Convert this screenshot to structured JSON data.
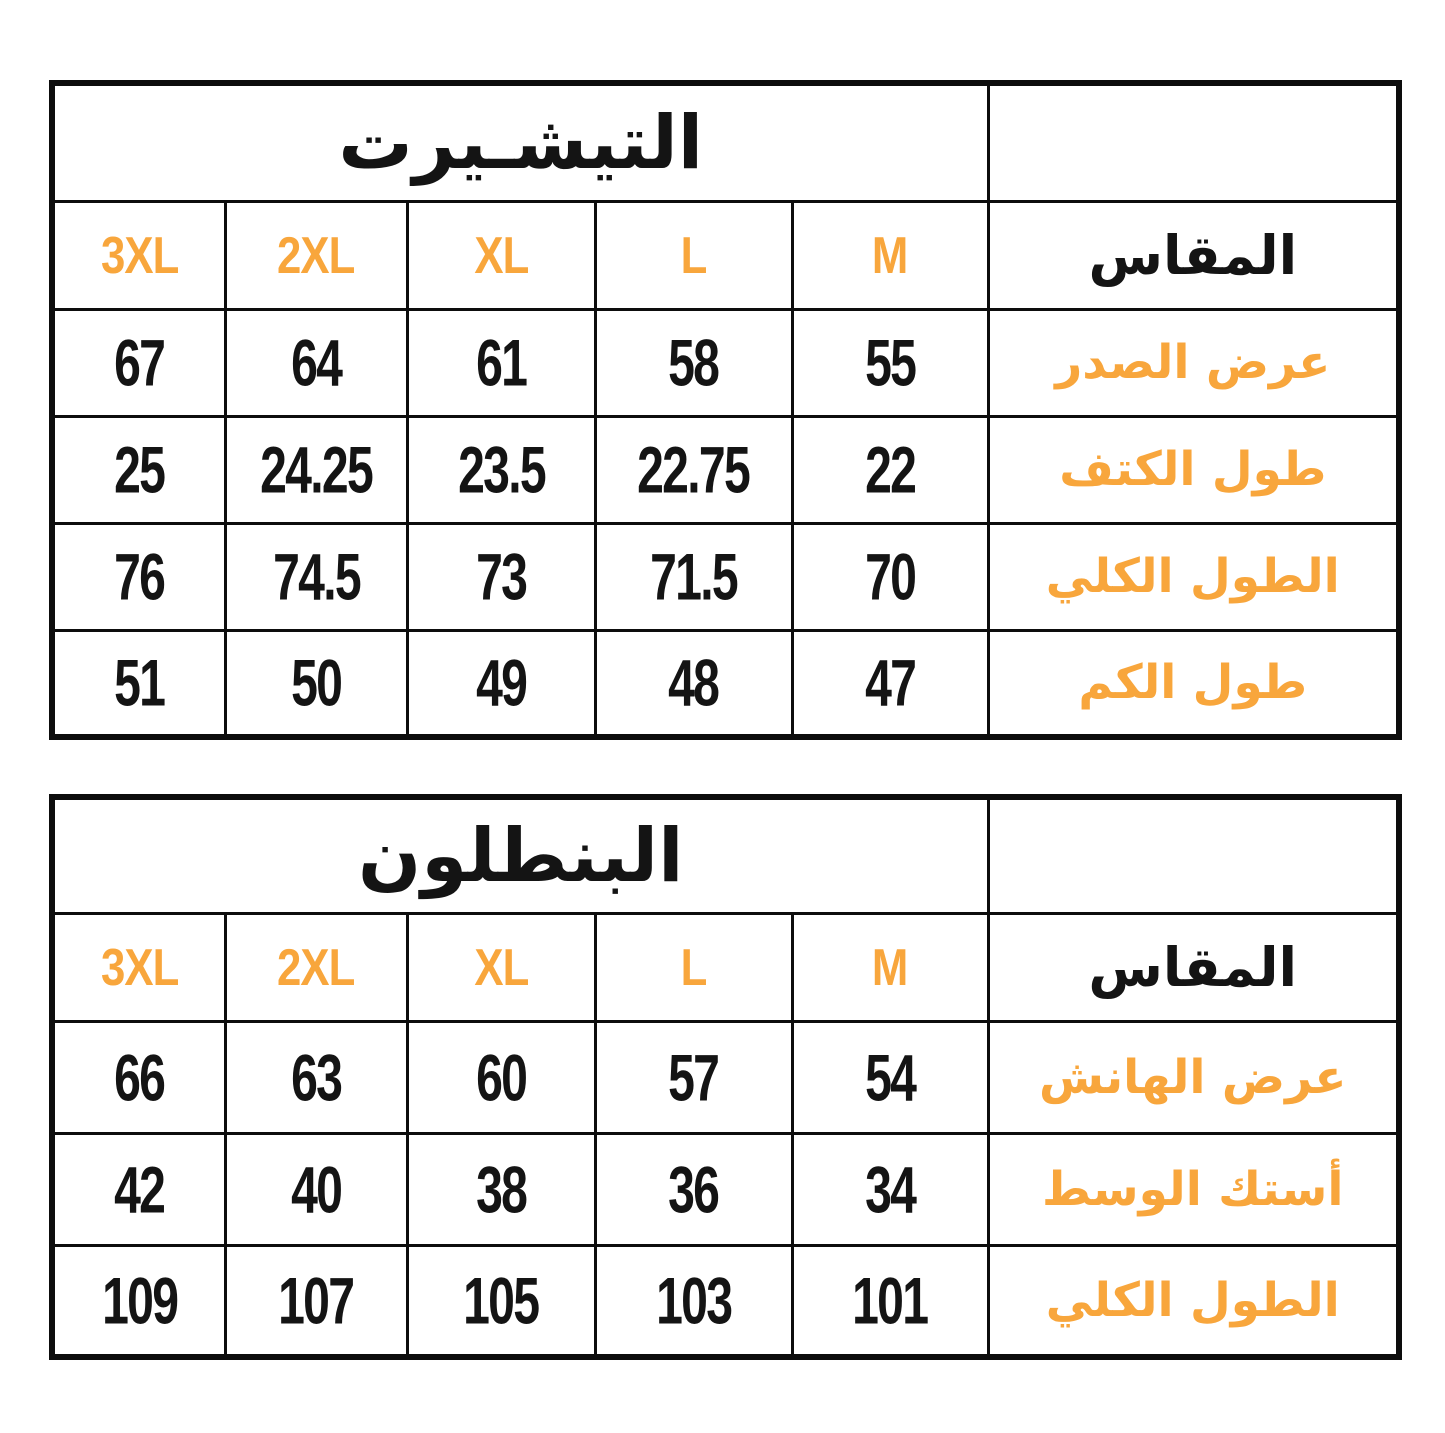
{
  "colors": {
    "accent_orange": "#F8A63C",
    "text_black": "#141414",
    "border_black": "#0d0d0d",
    "background": "#ffffff"
  },
  "tables": [
    {
      "title": "التيشـيرت",
      "size_header_label": "المقاس",
      "sizes": [
        "3XL",
        "2XL",
        "XL",
        "L",
        "M"
      ],
      "rows": [
        {
          "label": "عرض الصدر",
          "values": [
            "67",
            "64",
            "61",
            "58",
            "55"
          ]
        },
        {
          "label": "طول الكتف",
          "values": [
            "25",
            "24.25",
            "23.5",
            "22.75",
            "22"
          ]
        },
        {
          "label": "الطول الكلي",
          "values": [
            "76",
            "74.5",
            "73",
            "71.5",
            "70"
          ]
        },
        {
          "label": "طول الكم",
          "values": [
            "51",
            "50",
            "49",
            "48",
            "47"
          ]
        }
      ]
    },
    {
      "title": "البنطلون",
      "size_header_label": "المقاس",
      "sizes": [
        "3XL",
        "2XL",
        "XL",
        "L",
        "M"
      ],
      "rows": [
        {
          "label": "عرض الهانش",
          "values": [
            "66",
            "63",
            "60",
            "57",
            "54"
          ]
        },
        {
          "label": "أستك الوسط",
          "values": [
            "42",
            "40",
            "38",
            "36",
            "34"
          ]
        },
        {
          "label": "الطول الكلي",
          "values": [
            "109",
            "107",
            "105",
            "103",
            "101"
          ]
        }
      ]
    }
  ]
}
